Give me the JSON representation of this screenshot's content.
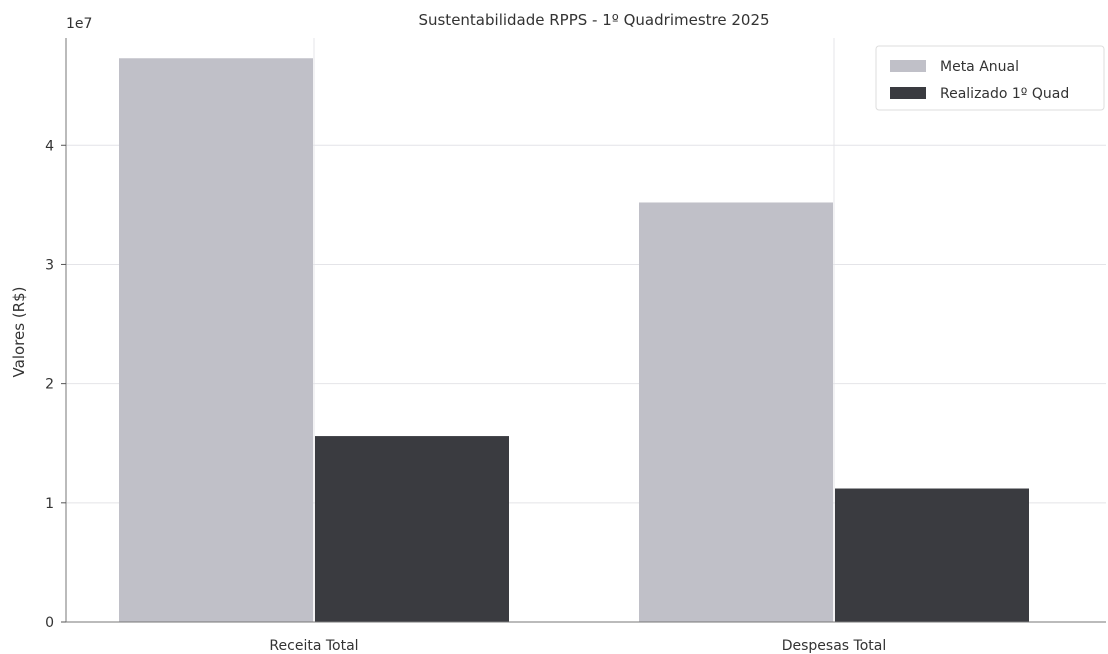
{
  "chart_data": {
    "type": "bar",
    "title": "Sustentabilidade RPPS - 1º Quadrimestre 2025",
    "ylabel": "Valores (R$)",
    "xlabel": "",
    "y_scale_label": "1e7",
    "y_scale": 10000000,
    "ylim": [
      0,
      4.9
    ],
    "y_ticks": [
      0,
      1,
      2,
      3,
      4
    ],
    "y_tick_labels": [
      "0",
      "1",
      "2",
      "3",
      "4"
    ],
    "categories": [
      "Receita Total",
      "Despesas Total"
    ],
    "series": [
      {
        "name": "Meta Anual",
        "values": [
          4.73,
          3.52
        ],
        "color": "#c0c0c8"
      },
      {
        "name": "Realizado 1º Quad",
        "values": [
          1.56,
          1.12
        ],
        "color": "#3a3b40"
      }
    ],
    "grid": true,
    "legend_position": "top-right"
  }
}
